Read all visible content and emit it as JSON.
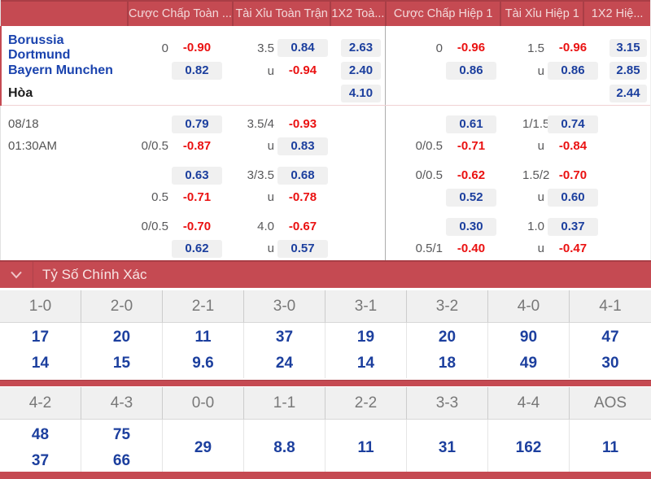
{
  "colors": {
    "bar_red": "#c54a52",
    "bar_red_dark": "#a93e46",
    "odds_blue": "#1c3f9e",
    "odds_red": "#ea1111",
    "box_gray": "#f0f0f0"
  },
  "odds_table": {
    "header": [
      "",
      "Cược Chấp Toàn ...",
      "Tài Xỉu Toàn Trận",
      "1X2 Toà...",
      "Cược Chấp Hiệp 1",
      "Tài Xỉu Hiệp 1",
      "1X2 Hiệ..."
    ],
    "groups": [
      {
        "rows": [
          {
            "label": "Borussia Dortmund",
            "label_style": "blue",
            "left": {
              "hl": "0",
              "hv": "-0.90",
              "hs": "neg",
              "tl": "3.5",
              "tv": "0.84",
              "ts": "pos",
              "x": "2.63"
            },
            "right": {
              "hl": "0",
              "hv": "-0.96",
              "hs": "neg",
              "tl": "1.5",
              "tv": "-0.96",
              "ts": "neg",
              "x": "3.15"
            }
          },
          {
            "label": "Bayern Munchen",
            "label_style": "blue",
            "left": {
              "hl": "",
              "hv": "0.82",
              "hs": "pos",
              "tl": "u",
              "tv": "-0.94",
              "ts": "neg",
              "x": "2.40"
            },
            "right": {
              "hl": "",
              "hv": "0.86",
              "hs": "pos",
              "tl": "u",
              "tv": "0.86",
              "ts": "pos",
              "x": "2.85"
            }
          },
          {
            "label": "Hòa",
            "label_style": "dark",
            "left": {
              "hl": "",
              "hv": "",
              "hs": "",
              "tl": "",
              "tv": "",
              "ts": "",
              "x": "4.10"
            },
            "right": {
              "hl": "",
              "hv": "",
              "hs": "",
              "tl": "",
              "tv": "",
              "ts": "",
              "x": "2.44"
            }
          }
        ]
      },
      {
        "rows": [
          {
            "label": "08/18",
            "label_style": "gray",
            "left": {
              "hl": "",
              "hv": "0.79",
              "hs": "pos",
              "tl": "3.5/4",
              "tv": "-0.93",
              "ts": "neg",
              "x": ""
            },
            "right": {
              "hl": "",
              "hv": "0.61",
              "hs": "pos",
              "tl": "1/1.5",
              "tv": "0.74",
              "ts": "pos",
              "x": ""
            }
          },
          {
            "label": "01:30AM",
            "label_style": "gray",
            "left": {
              "hl": "0/0.5",
              "hv": "-0.87",
              "hs": "neg",
              "tl": "u",
              "tv": "0.83",
              "ts": "pos",
              "x": ""
            },
            "right": {
              "hl": "0/0.5",
              "hv": "-0.71",
              "hs": "neg",
              "tl": "u",
              "tv": "-0.84",
              "ts": "neg",
              "x": ""
            }
          }
        ]
      },
      {
        "rows": [
          {
            "label": "",
            "label_style": "gray",
            "left": {
              "hl": "",
              "hv": "0.63",
              "hs": "pos",
              "tl": "3/3.5",
              "tv": "0.68",
              "ts": "pos",
              "x": ""
            },
            "right": {
              "hl": "0/0.5",
              "hv": "-0.62",
              "hs": "neg",
              "tl": "1.5/2",
              "tv": "-0.70",
              "ts": "neg",
              "x": ""
            }
          },
          {
            "label": "",
            "label_style": "gray",
            "left": {
              "hl": "0.5",
              "hv": "-0.71",
              "hs": "neg",
              "tl": "u",
              "tv": "-0.78",
              "ts": "neg",
              "x": ""
            },
            "right": {
              "hl": "",
              "hv": "0.52",
              "hs": "pos",
              "tl": "u",
              "tv": "0.60",
              "ts": "pos",
              "x": ""
            }
          }
        ]
      },
      {
        "rows": [
          {
            "label": "",
            "label_style": "gray",
            "left": {
              "hl": "0/0.5",
              "hv": "-0.70",
              "hs": "neg",
              "tl": "4.0",
              "tv": "-0.67",
              "ts": "neg",
              "x": ""
            },
            "right": {
              "hl": "",
              "hv": "0.30",
              "hs": "pos",
              "tl": "1.0",
              "tv": "0.37",
              "ts": "pos",
              "x": ""
            }
          },
          {
            "label": "",
            "label_style": "gray",
            "left": {
              "hl": "",
              "hv": "0.62",
              "hs": "pos",
              "tl": "u",
              "tv": "0.57",
              "ts": "pos",
              "x": ""
            },
            "right": {
              "hl": "0.5/1",
              "hv": "-0.40",
              "hs": "neg",
              "tl": "u",
              "tv": "-0.47",
              "ts": "neg",
              "x": ""
            }
          }
        ]
      }
    ]
  },
  "correct_score": {
    "title": "Tỷ Số Chính Xác",
    "grid1": {
      "headers": [
        "1-0",
        "2-0",
        "2-1",
        "3-0",
        "3-1",
        "3-2",
        "4-0",
        "4-1"
      ],
      "columns": [
        [
          "17",
          "14"
        ],
        [
          "20",
          "15"
        ],
        [
          "11",
          "9.6"
        ],
        [
          "37",
          "24"
        ],
        [
          "19",
          "14"
        ],
        [
          "20",
          "18"
        ],
        [
          "90",
          "49"
        ],
        [
          "47",
          "30"
        ]
      ]
    },
    "grid2": {
      "headers": [
        "4-2",
        "4-3",
        "0-0",
        "1-1",
        "2-2",
        "3-3",
        "4-4",
        "AOS"
      ],
      "columns": [
        [
          "48",
          "37"
        ],
        [
          "75",
          "66"
        ],
        [
          "29"
        ],
        [
          "8.8"
        ],
        [
          "11"
        ],
        [
          "31"
        ],
        [
          "162"
        ],
        [
          "11"
        ]
      ]
    }
  }
}
